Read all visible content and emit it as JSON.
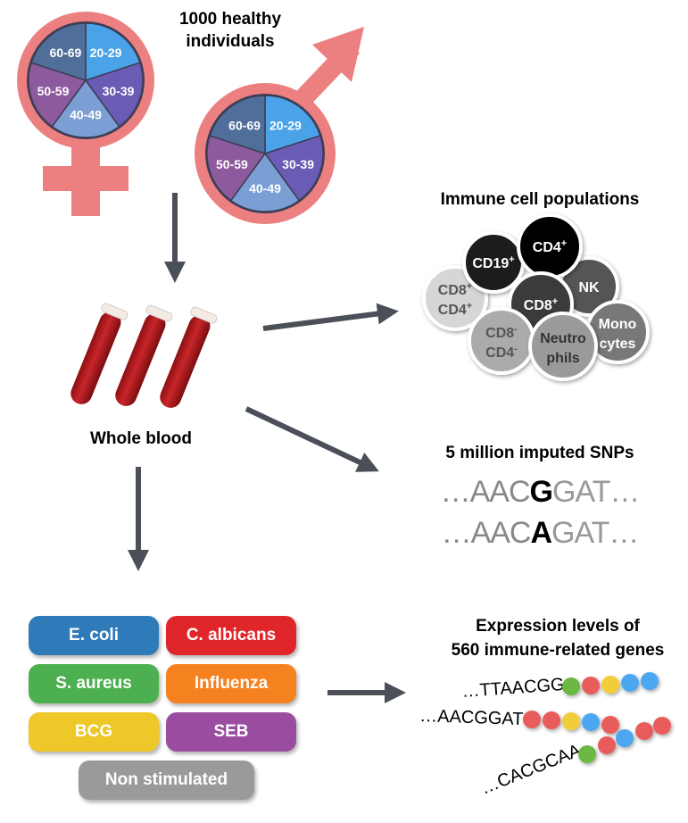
{
  "title": "1000 healthy individuals",
  "title_line1": "1000 healthy",
  "title_line2": "individuals",
  "age_groups": [
    "20-29",
    "30-39",
    "40-49",
    "50-59",
    "60-69"
  ],
  "colors": {
    "symbol": "#ec8080",
    "arrow": "#4b4f57",
    "age_20_29": "#4aa3e8",
    "age_30_39": "#6a5bb5",
    "age_40_49": "#7b9fd4",
    "age_50_59": "#8e5a9e",
    "age_60_69": "#4f6f9a"
  },
  "whole_blood": "Whole blood",
  "immune": {
    "title": "Immune cell populations",
    "cells": [
      {
        "label1": "CD19",
        "sup1": "+",
        "label2": "",
        "sup2": "",
        "color": "#1e1e1e",
        "text": "#fff"
      },
      {
        "label1": "CD4",
        "sup1": "+",
        "label2": "",
        "sup2": "",
        "color": "#000000",
        "text": "#fff"
      },
      {
        "label1": "NK",
        "sup1": "",
        "label2": "",
        "sup2": "",
        "color": "#545454",
        "text": "#fff"
      },
      {
        "label1": "CD8",
        "sup1": "+",
        "label2": "CD4",
        "sup2": "+",
        "color": "#d6d6d6",
        "text": "#555"
      },
      {
        "label1": "CD8",
        "sup1": "+",
        "label2": "",
        "sup2": "",
        "color": "#3a3a3a",
        "text": "#fff"
      },
      {
        "label1": "CD8",
        "sup1": "-",
        "label2": "CD4",
        "sup2": "-",
        "color": "#ababab",
        "text": "#555"
      },
      {
        "label1": "Neutro",
        "sup1": "",
        "label2": "phils",
        "sup2": "",
        "color": "#9a9a9a",
        "text": "#333"
      },
      {
        "label1": "Mono",
        "sup1": "",
        "label2": "cytes",
        "sup2": "",
        "color": "#787878",
        "text": "#fff"
      }
    ]
  },
  "snps": {
    "title": "5 million imputed SNPs",
    "seq1": {
      "pre": "…AAC",
      "snp": "G",
      "post": "GAT…"
    },
    "seq2": {
      "pre": "…AAC",
      "snp": "A",
      "post": "GAT…"
    }
  },
  "expression": {
    "title_line1": "Expression levels of",
    "title_line2": "560 immune-related genes",
    "seqs": [
      "…TTAACGG",
      "…AACGGAT",
      "…CACGCAA"
    ]
  },
  "stimuli": [
    {
      "label": "E. coli",
      "color": "#2f7ab8"
    },
    {
      "label": "C. albicans",
      "color": "#e0262b"
    },
    {
      "label": "S. aureus",
      "color": "#4caf50"
    },
    {
      "label": "Influenza",
      "color": "#f5821f"
    },
    {
      "label": "BCG",
      "color": "#eec728"
    },
    {
      "label": "SEB",
      "color": "#9a4da0"
    },
    {
      "label": "Non stimulated",
      "color": "#9a9a9a"
    }
  ]
}
